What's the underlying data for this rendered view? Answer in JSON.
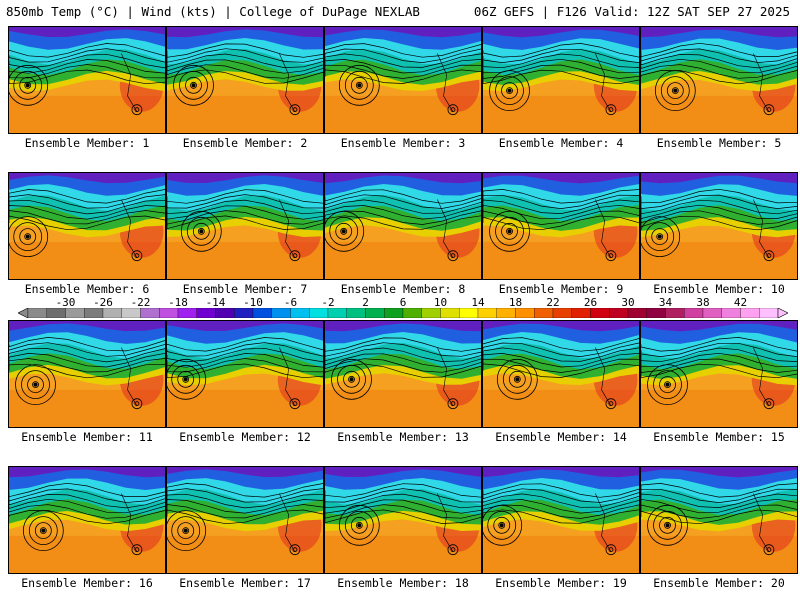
{
  "header": {
    "left_text": "850mb Temp (°C) | Wind (kts) | College of DuPage NEXLAB",
    "right_text": "06Z GEFS | F126 Valid: 12Z SAT SEP 27 2025"
  },
  "panels": [
    {
      "label": "Ensemble Member: 1"
    },
    {
      "label": "Ensemble Member: 2"
    },
    {
      "label": "Ensemble Member: 3"
    },
    {
      "label": "Ensemble Member: 4"
    },
    {
      "label": "Ensemble Member: 5"
    },
    {
      "label": "Ensemble Member: 6"
    },
    {
      "label": "Ensemble Member: 7"
    },
    {
      "label": "Ensemble Member: 8"
    },
    {
      "label": "Ensemble Member: 9"
    },
    {
      "label": "Ensemble Member: 10"
    },
    {
      "label": "Ensemble Member: 11"
    },
    {
      "label": "Ensemble Member: 12"
    },
    {
      "label": "Ensemble Member: 13"
    },
    {
      "label": "Ensemble Member: 14"
    },
    {
      "label": "Ensemble Member: 15"
    },
    {
      "label": "Ensemble Member: 16"
    },
    {
      "label": "Ensemble Member: 17"
    },
    {
      "label": "Ensemble Member: 18"
    },
    {
      "label": "Ensemble Member: 19"
    },
    {
      "label": "Ensemble Member: 20"
    }
  ],
  "colorbar": {
    "ticks": [
      "-30",
      "-26",
      "-22",
      "-18",
      "-14",
      "-10",
      "-6",
      "-2",
      "2",
      "6",
      "10",
      "14",
      "18",
      "22",
      "26",
      "30",
      "34",
      "38",
      "42"
    ],
    "colors": [
      "#8a8a8a",
      "#6e6e6e",
      "#9a9a9a",
      "#7c7c7c",
      "#b0b0b0",
      "#c8c8c8",
      "#b070d0",
      "#c050e0",
      "#a020f0",
      "#7000d0",
      "#5000b0",
      "#2020c0",
      "#0050e0",
      "#0090f0",
      "#00c0f0",
      "#00e0e0",
      "#00d0b0",
      "#00c080",
      "#00b050",
      "#10a020",
      "#50b000",
      "#a0d000",
      "#e0e000",
      "#ffff00",
      "#ffd000",
      "#ffb000",
      "#ff9000",
      "#f06000",
      "#e84000",
      "#e02000",
      "#d00010",
      "#c00020",
      "#a00030",
      "#900040",
      "#b02060",
      "#d040a0",
      "#e060c0",
      "#f080e0",
      "#ffa0f0",
      "#ffc0ff"
    ]
  },
  "palette": {
    "warm": "#f5a020",
    "orange": "#f08010",
    "yellow": "#e8d000",
    "green": "#30b030",
    "teal": "#10c0b0",
    "cyan": "#30d8e8",
    "blue": "#2060e0",
    "purple": "#6020c0",
    "red": "#e03020"
  }
}
